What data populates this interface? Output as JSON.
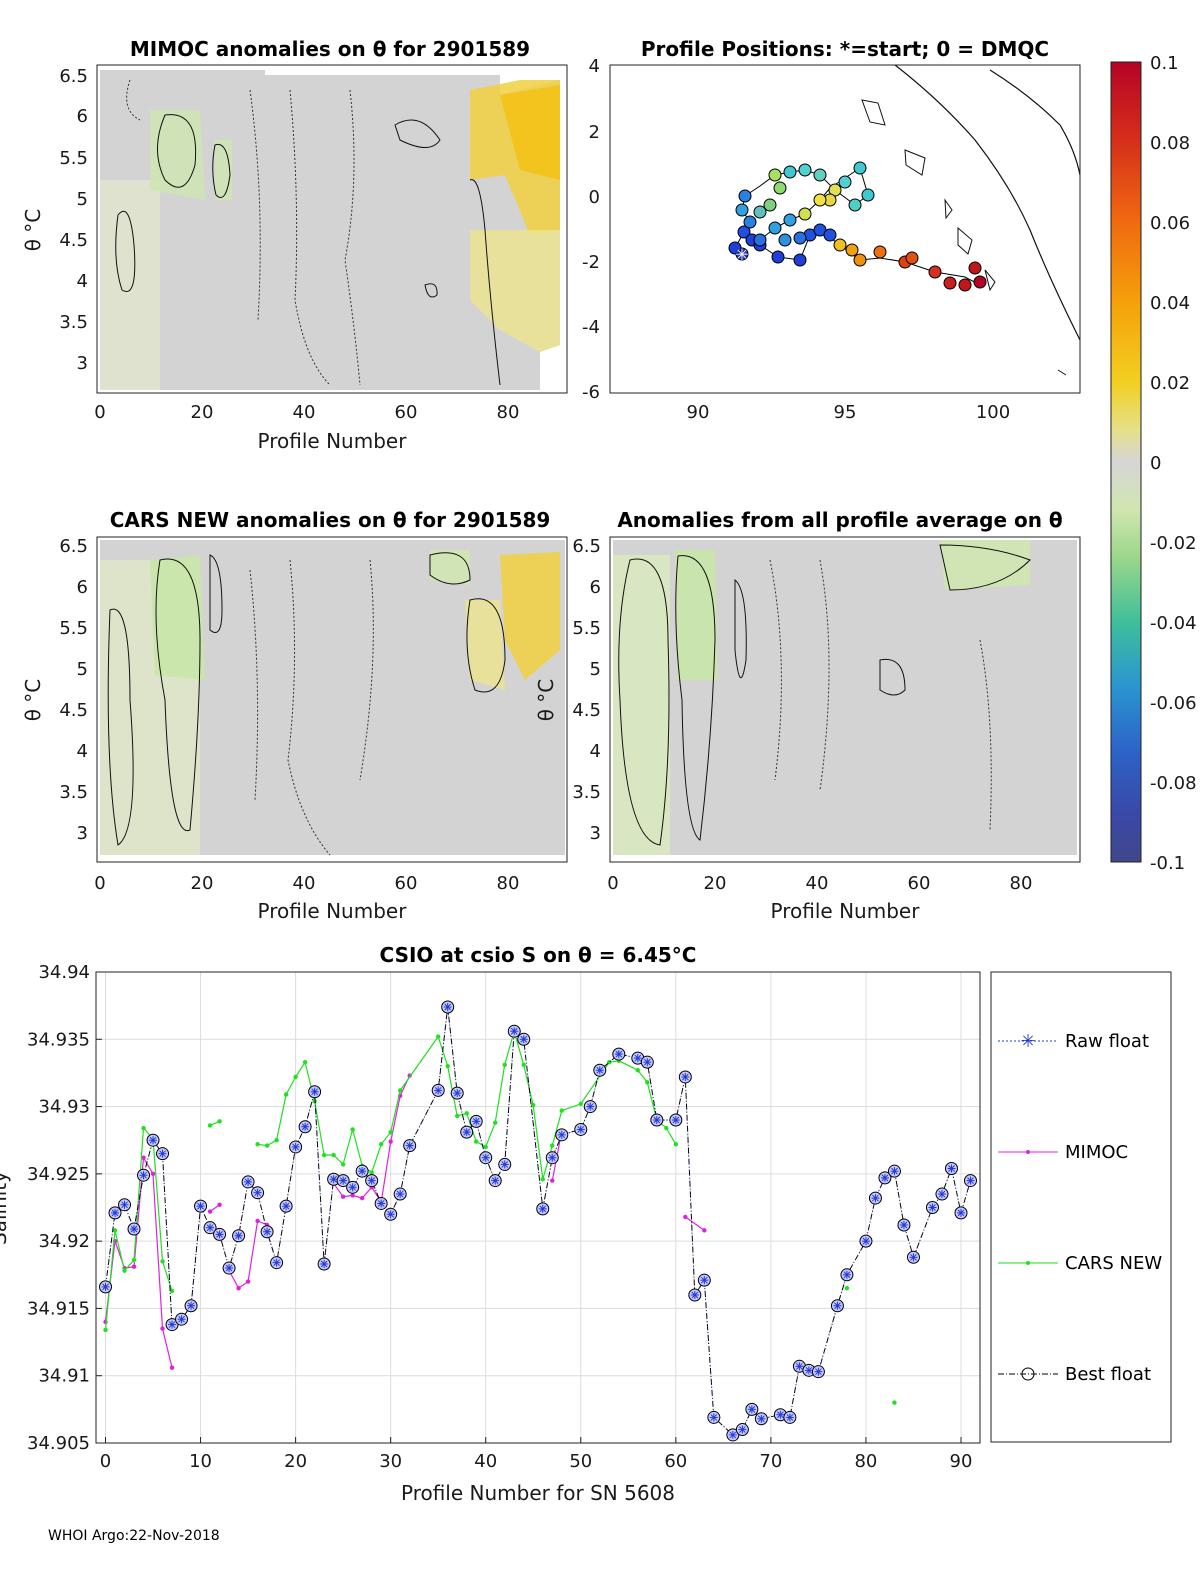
{
  "footer": "WHOI Argo:22-Nov-2018",
  "colorbar": {
    "ticks": [
      "0.1",
      "0.08",
      "0.06",
      "0.04",
      "0.02",
      "0",
      "-0.02",
      "-0.04",
      "-0.06",
      "-0.08",
      "-0.1"
    ],
    "colors": [
      "#b40426",
      "#d6301a",
      "#e8600c",
      "#f5920a",
      "#f2c00a",
      "#e8e06a",
      "#dedcb8",
      "#d4d4d4",
      "#cfe6b0",
      "#9ad68a",
      "#4dbb8a",
      "#2aa6b0",
      "#2a8ad0",
      "#2c64c8",
      "#3a48a8",
      "#40488a"
    ]
  },
  "panels": {
    "mimoc": {
      "title": "MIMOC anomalies on θ  for 2901589",
      "yticks": [
        "6.5",
        "6",
        "5.5",
        "5",
        "4.5",
        "4",
        "3.5",
        "3"
      ],
      "xticks": [
        "0",
        "20",
        "40",
        "60",
        "80"
      ],
      "xlabel": "Profile Number",
      "ylabel": "θ °C"
    },
    "positions": {
      "title": "Profile Positions: *=start; 0 = DMQC",
      "yticks": [
        "4",
        "2",
        "0",
        "-2",
        "-4",
        "-6"
      ],
      "xticks": [
        "90",
        "95",
        "100"
      ]
    },
    "cars": {
      "title": "CARS NEW anomalies on θ for 2901589",
      "yticks": [
        "6.5",
        "6",
        "5.5",
        "5",
        "4.5",
        "4",
        "3.5",
        "3"
      ],
      "xticks": [
        "0",
        "20",
        "40",
        "60",
        "80"
      ],
      "xlabel": "Profile Number",
      "ylabel": "θ °C"
    },
    "allavg": {
      "title": "Anomalies from all profile average on θ",
      "yticks": [
        "6.5",
        "6",
        "5.5",
        "5",
        "4.5",
        "4",
        "3.5",
        "3"
      ],
      "xticks": [
        "0",
        "20",
        "40",
        "60",
        "80"
      ],
      "xlabel": "Profile Number",
      "ylabel": "θ °C"
    }
  },
  "chart_data": {
    "type": "line",
    "title": "CSIO at csio S on θ = 6.45°C",
    "xlabel": "Profile Number for SN 5608",
    "ylabel": "Salinity",
    "xlim": [
      -1,
      92
    ],
    "ylim": [
      34.905,
      34.94
    ],
    "xticks": [
      0,
      10,
      20,
      30,
      40,
      50,
      60,
      70,
      80,
      90
    ],
    "yticks": [
      34.905,
      34.91,
      34.915,
      34.92,
      34.925,
      34.93,
      34.935,
      34.94
    ],
    "ytick_labels": [
      "34.905",
      "34.91",
      "34.915",
      "34.92",
      "34.925",
      "34.93",
      "34.935",
      "34.94"
    ],
    "legend": [
      "Raw float",
      "MIMOC",
      "CARS NEW",
      "Best float"
    ],
    "series": [
      {
        "name": "Best float",
        "x": [
          0,
          1,
          2,
          3,
          4,
          5,
          6,
          7,
          8,
          9,
          10,
          11,
          12,
          13,
          14,
          15,
          16,
          17,
          18,
          19,
          20,
          21,
          22,
          23,
          24,
          25,
          26,
          27,
          28,
          29,
          30,
          31,
          32,
          35,
          36,
          37,
          38,
          39,
          40,
          41,
          42,
          43,
          44,
          46,
          47,
          48,
          50,
          51,
          52,
          54,
          56,
          57,
          58,
          60,
          61,
          62,
          63,
          64,
          66,
          67,
          68,
          69,
          71,
          72,
          73,
          74,
          75,
          77,
          78,
          80,
          81,
          82,
          83,
          84,
          85,
          87,
          88,
          89,
          90,
          91
        ],
        "values": [
          34.9166,
          34.9221,
          34.9227,
          34.9209,
          34.9249,
          34.9275,
          34.9265,
          34.9138,
          34.9142,
          34.9152,
          34.9226,
          34.921,
          34.9205,
          34.918,
          34.9204,
          34.9244,
          34.9236,
          34.9207,
          34.9184,
          34.9226,
          34.927,
          34.9285,
          34.9311,
          34.9183,
          34.9246,
          34.9245,
          34.924,
          34.9252,
          34.9245,
          34.9228,
          34.922,
          34.9235,
          34.9271,
          34.9312,
          34.9374,
          34.931,
          34.9281,
          34.9289,
          34.9262,
          34.9245,
          34.9257,
          34.9356,
          34.935,
          34.9224,
          34.9262,
          34.9279,
          34.9283,
          34.93,
          34.9327,
          34.9339,
          34.9336,
          34.9333,
          34.929,
          34.929,
          34.9322,
          34.916,
          34.9171,
          34.9069,
          34.9056,
          34.906,
          34.9075,
          34.9068,
          34.9071,
          34.9069,
          34.9107,
          34.9104,
          34.9103,
          34.9152,
          34.9175,
          34.92,
          34.9232,
          34.9247,
          34.9252,
          34.9212,
          34.9188,
          34.9225,
          34.9235,
          34.9254,
          34.9221,
          34.9245
        ]
      },
      {
        "name": "MIMOC",
        "segments": [
          {
            "x": [
              0,
              1,
              2,
              3,
              4,
              5,
              6,
              7
            ],
            "values": [
              34.914,
              34.92,
              34.918,
              34.9181,
              34.9262,
              34.925,
              34.9135,
              34.9106
            ]
          },
          {
            "x": [
              11,
              12
            ],
            "values": [
              34.9222,
              34.9227
            ]
          },
          {
            "x": [
              13,
              14,
              15,
              16,
              17
            ],
            "values": [
              34.9178,
              34.9165,
              34.917,
              34.9215,
              34.9212
            ]
          },
          {
            "x": [
              24,
              25,
              26,
              27,
              28,
              29,
              30,
              31,
              32
            ],
            "values": [
              34.9243,
              34.9233,
              34.9234,
              34.9232,
              34.924,
              34.9229,
              34.9274,
              34.9308,
              34.9323
            ]
          },
          {
            "x": [
              47,
              48
            ],
            "values": [
              34.9245,
              34.9282
            ]
          },
          {
            "x": [
              61,
              63
            ],
            "values": [
              34.9218,
              34.9208
            ]
          }
        ]
      },
      {
        "name": "CARS NEW",
        "segments": [
          {
            "x": [
              0,
              1,
              2,
              3,
              4,
              5,
              6,
              7
            ],
            "values": [
              34.9134,
              34.9208,
              34.9178,
              34.9186,
              34.9284,
              34.9276,
              34.9185,
              34.9163
            ]
          },
          {
            "x": [
              11,
              12
            ],
            "values": [
              34.9286,
              34.9289
            ]
          },
          {
            "x": [
              16,
              17,
              18,
              19,
              20,
              21,
              22,
              23,
              24,
              25,
              26,
              27,
              28,
              29,
              30,
              31,
              35,
              36,
              37,
              38,
              39,
              40,
              41,
              42,
              43,
              44,
              45,
              46,
              47,
              48,
              50,
              53,
              54,
              56,
              57,
              58,
              59,
              60
            ],
            "values": [
              34.9272,
              34.9271,
              34.9275,
              34.9309,
              34.9322,
              34.9333,
              34.9304,
              34.9264,
              34.9264,
              34.9257,
              34.9283,
              34.9256,
              34.9251,
              34.9272,
              34.9281,
              34.9312,
              34.9352,
              34.933,
              34.9293,
              34.9295,
              34.9274,
              34.927,
              34.9288,
              34.9331,
              34.9356,
              34.9331,
              34.9301,
              34.9246,
              34.9271,
              34.9297,
              34.9302,
              34.9333,
              34.9334,
              34.9327,
              34.9318,
              34.929,
              34.9284,
              34.9272
            ]
          },
          {
            "x": [
              78
            ],
            "values": [
              34.9165
            ]
          },
          {
            "x": [
              83
            ],
            "values": [
              34.908
            ]
          }
        ]
      }
    ]
  }
}
